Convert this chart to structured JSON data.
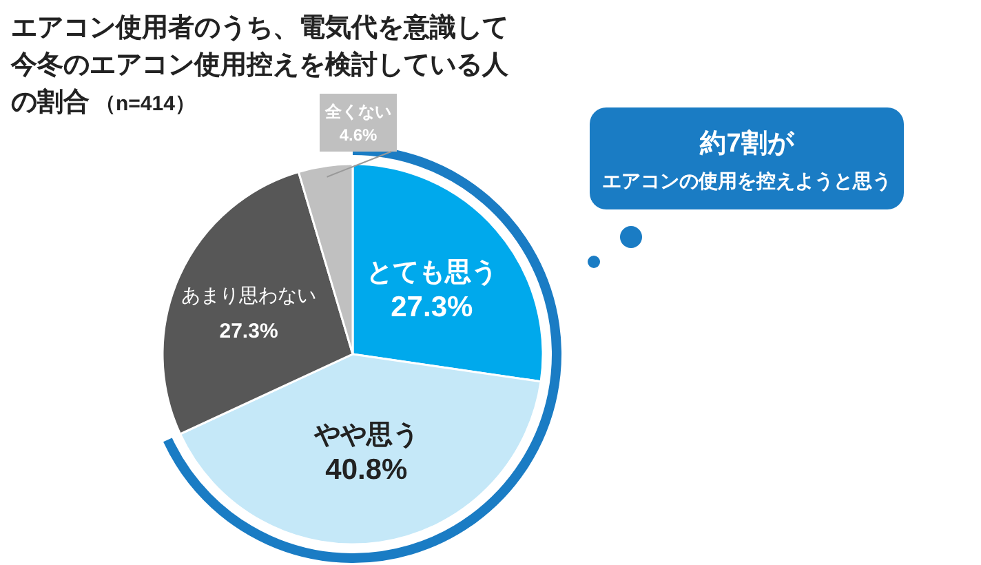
{
  "chart_data": {
    "type": "pie",
    "title": "エアコン使用者のうち、電気代を意識して今冬のエアコン使用控えを検討している人の割合",
    "subtitle": "（n=414）",
    "categories": [
      "とても思う",
      "やや思う",
      "あまり思わない",
      "全くない"
    ],
    "values": [
      27.3,
      40.8,
      27.3,
      4.6
    ],
    "colors": [
      "#00a9ec",
      "#c5e8f8",
      "#575757",
      "#c0c0c0"
    ],
    "value_labels": [
      "27.3%",
      "40.8%",
      "27.3%",
      "4.6%"
    ],
    "annotations": [
      "約7割が",
      "エアコンの使用を控えようと思う"
    ]
  }
}
